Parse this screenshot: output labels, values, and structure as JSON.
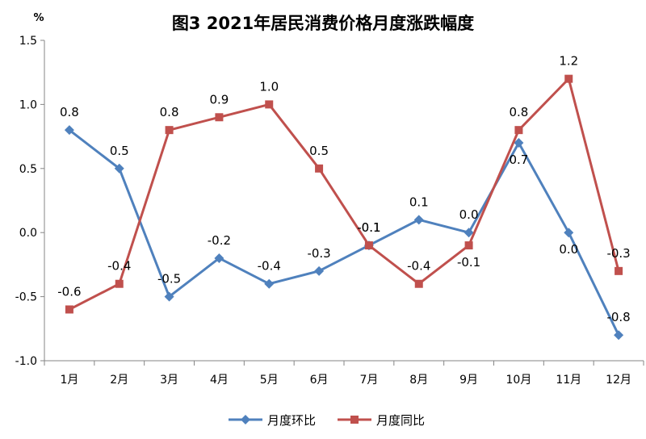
{
  "chart_data": {
    "type": "line",
    "title": "图3  2021年居民消费价格月度涨跌幅度",
    "ylabel": "%",
    "xlabel": "",
    "ylim": [
      -1.0,
      1.5
    ],
    "yticks": [
      "1.5",
      "1.0",
      "0.5",
      "0.0",
      "-0.5",
      "-1.0"
    ],
    "categories": [
      "1月",
      "2月",
      "3月",
      "4月",
      "5月",
      "6月",
      "7月",
      "8月",
      "9月",
      "10月",
      "11月",
      "12月"
    ],
    "grid": false,
    "legend_position": "bottom",
    "series": [
      {
        "name": "月度环比",
        "color": "#4F81BD",
        "marker": "diamond",
        "values": [
          0.8,
          0.5,
          -0.5,
          -0.2,
          -0.4,
          -0.3,
          -0.1,
          0.1,
          0.0,
          0.7,
          0.0,
          -0.8
        ],
        "labels": [
          "0.8",
          "0.5",
          "-0.5",
          "-0.2",
          "-0.4",
          "-0.3",
          "-0.1",
          "0.1",
          "0.0",
          "0.7",
          "0.0",
          "-0.8"
        ]
      },
      {
        "name": "月度同比",
        "color": "#C0504D",
        "marker": "square",
        "values": [
          -0.6,
          -0.4,
          0.8,
          0.9,
          1.0,
          0.5,
          -0.1,
          -0.4,
          -0.1,
          0.8,
          1.2,
          -0.3
        ],
        "labels": [
          "-0.6",
          "-0.4",
          "0.8",
          "0.9",
          "1.0",
          "0.5",
          "-0.1",
          "-0.4",
          "-0.1",
          "0.8",
          "1.2",
          "-0.3"
        ]
      }
    ]
  }
}
